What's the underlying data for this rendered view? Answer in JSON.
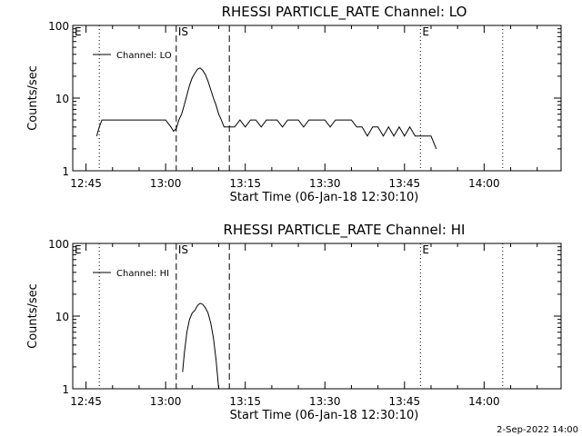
{
  "footer": {
    "date_stamp": "2-Sep-2022 14:00"
  },
  "chart_data": [
    {
      "type": "line",
      "title": "RHESSI PARTICLE_RATE Channel: LO",
      "xlabel": "Start Time (06-Jan-18 12:30:10)",
      "ylabel": "Counts/sec",
      "y_scale": "log",
      "ylim": [
        1,
        100
      ],
      "xlim_minutes": [
        12.5,
        104.5
      ],
      "x_tick_labels": [
        "12:45",
        "13:00",
        "13:15",
        "13:30",
        "13:45",
        "14:00"
      ],
      "x_tick_minutes": [
        15,
        30,
        45,
        60,
        75,
        90
      ],
      "y_tick_labels": [
        "1",
        "10",
        "100"
      ],
      "y_tick_values": [
        1,
        10,
        100
      ],
      "legend": {
        "label": "Channel: LO",
        "placement": "top-left"
      },
      "markers": [
        {
          "label": "E",
          "minute": 12.5,
          "style": "none"
        },
        {
          "label": "",
          "minute": 17.5,
          "style": "dotted"
        },
        {
          "label": "IS",
          "minute": 32.0,
          "style": "dashed"
        },
        {
          "label": "",
          "minute": 42.0,
          "style": "dashed"
        },
        {
          "label": "E",
          "minute": 78.0,
          "style": "dotted"
        },
        {
          "label": "",
          "minute": 93.5,
          "style": "dotted"
        }
      ],
      "series": [
        {
          "name": "Channel: LO",
          "x_minutes": [
            17,
            17.5,
            18,
            19,
            20,
            21,
            22,
            23,
            24,
            25,
            26,
            27,
            28,
            29,
            30,
            31,
            31.5,
            32,
            32.5,
            33,
            33.5,
            34,
            34.5,
            35,
            35.5,
            36,
            36.5,
            37,
            37.5,
            38,
            38.5,
            39,
            39.5,
            40,
            40.5,
            41,
            41.5,
            42,
            43,
            44,
            45,
            46,
            47,
            48,
            49,
            50,
            51,
            52,
            53,
            54,
            55,
            56,
            57,
            58,
            59,
            60,
            61,
            62,
            63,
            64,
            65,
            66,
            67,
            68,
            69,
            70,
            71,
            72,
            73,
            74,
            75,
            76,
            77,
            78,
            79,
            80,
            81
          ],
          "values": [
            3,
            4,
            5,
            5,
            5,
            5,
            5,
            5,
            5,
            5,
            5,
            5,
            5,
            5,
            5,
            4,
            3.5,
            3.8,
            5,
            6,
            8,
            11,
            15,
            19,
            22,
            25,
            26,
            24,
            21,
            17,
            13,
            10,
            8,
            6,
            5,
            4,
            4,
            4,
            4,
            5,
            4,
            5,
            5,
            4,
            5,
            5,
            5,
            4,
            5,
            5,
            5,
            4,
            5,
            5,
            5,
            5,
            4,
            5,
            5,
            5,
            5,
            4,
            4,
            3,
            4,
            4,
            3,
            4,
            3,
            4,
            3,
            4,
            3,
            3,
            3,
            3,
            2
          ]
        }
      ]
    },
    {
      "type": "line",
      "title": "RHESSI PARTICLE_RATE Channel: HI",
      "xlabel": "Start Time (06-Jan-18 12:30:10)",
      "ylabel": "Counts/sec",
      "y_scale": "log",
      "ylim": [
        1,
        100
      ],
      "xlim_minutes": [
        12.5,
        104.5
      ],
      "x_tick_labels": [
        "12:45",
        "13:00",
        "13:15",
        "13:30",
        "13:45",
        "14:00"
      ],
      "x_tick_minutes": [
        15,
        30,
        45,
        60,
        75,
        90
      ],
      "y_tick_labels": [
        "1",
        "10",
        "100"
      ],
      "y_tick_values": [
        1,
        10,
        100
      ],
      "legend": {
        "label": "Channel: HI",
        "placement": "top-left"
      },
      "markers": [
        {
          "label": "E",
          "minute": 12.5,
          "style": "none"
        },
        {
          "label": "",
          "minute": 17.5,
          "style": "dotted"
        },
        {
          "label": "IS",
          "minute": 32.0,
          "style": "dashed"
        },
        {
          "label": "",
          "minute": 42.0,
          "style": "dashed"
        },
        {
          "label": "E",
          "minute": 78.0,
          "style": "dotted"
        },
        {
          "label": "",
          "minute": 93.5,
          "style": "dotted"
        }
      ],
      "series": [
        {
          "name": "Channel: HI",
          "x_minutes": [
            33.2,
            33.5,
            34,
            34.5,
            35,
            35.5,
            36,
            36.5,
            37,
            37.5,
            38,
            38.5,
            39,
            39.5,
            40
          ],
          "values": [
            1.7,
            3,
            6,
            9,
            11,
            12,
            14,
            15,
            14.5,
            13,
            11,
            8,
            5,
            2.5,
            1
          ]
        }
      ]
    }
  ]
}
